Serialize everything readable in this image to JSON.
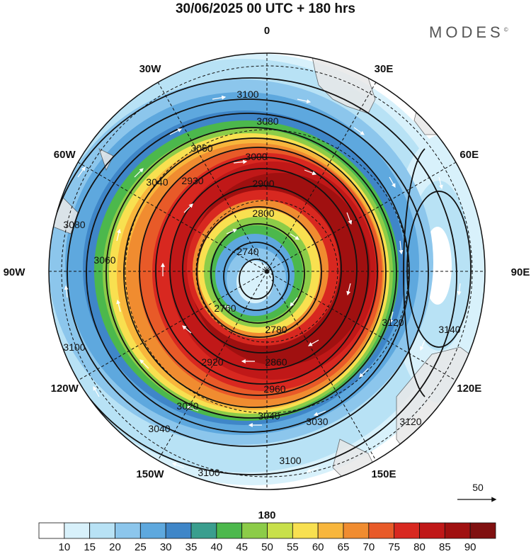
{
  "header": {
    "title": "30/06/2025  00 UTC  + 180 hrs",
    "brand": "MODES"
  },
  "map": {
    "projection": "south-polar-stereographic",
    "longitude_labels": [
      {
        "text": "0",
        "lon": 0
      },
      {
        "text": "30E",
        "lon": 30
      },
      {
        "text": "60E",
        "lon": 60
      },
      {
        "text": "90E",
        "lon": 90
      },
      {
        "text": "120E",
        "lon": 120
      },
      {
        "text": "150E",
        "lon": 150
      },
      {
        "text": "180",
        "lon": 180
      },
      {
        "text": "150W",
        "lon": -150
      },
      {
        "text": "120W",
        "lon": -120
      },
      {
        "text": "90W",
        "lon": -90
      },
      {
        "text": "60W",
        "lon": -60
      },
      {
        "text": "30W",
        "lon": -30
      }
    ],
    "contour_labels": [
      "3100",
      "3080",
      "3060",
      "3000",
      "3040",
      "2930",
      "2900",
      "2800",
      "2740",
      "2760",
      "2780",
      "2860",
      "2920",
      "2960",
      "3020",
      "3040",
      "3040",
      "3100",
      "3100",
      "3120",
      "3140",
      "3120",
      "3100",
      "3060",
      "3080",
      "3030"
    ],
    "wind_reference": {
      "value": "50"
    }
  },
  "colorbar": {
    "ticks": [
      "10",
      "15",
      "20",
      "25",
      "30",
      "35",
      "40",
      "45",
      "50",
      "55",
      "60",
      "65",
      "70",
      "75",
      "80",
      "85",
      "90"
    ],
    "colors": [
      "#ffffff",
      "#d8f1fb",
      "#b8e2f5",
      "#8cc6ec",
      "#5ea8de",
      "#3f86c8",
      "#3a9e8e",
      "#4cb84c",
      "#8ccc48",
      "#c8e04a",
      "#f8e050",
      "#f8b63c",
      "#f08c30",
      "#e85a28",
      "#d82820",
      "#c01818",
      "#a01010",
      "#801010"
    ]
  }
}
